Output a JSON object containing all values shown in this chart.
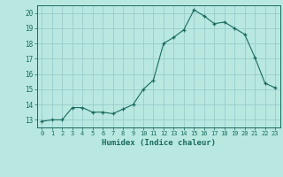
{
  "x": [
    0,
    1,
    2,
    3,
    4,
    5,
    6,
    7,
    8,
    9,
    10,
    11,
    12,
    13,
    14,
    15,
    16,
    17,
    18,
    19,
    20,
    21,
    22,
    23
  ],
  "y": [
    12.9,
    13.0,
    13.0,
    13.8,
    13.8,
    13.5,
    13.5,
    13.4,
    13.7,
    14.0,
    15.0,
    15.6,
    18.0,
    18.4,
    18.9,
    20.2,
    19.8,
    19.3,
    19.4,
    19.0,
    18.6,
    17.1,
    15.4,
    15.1
  ],
  "xlim": [
    -0.5,
    23.5
  ],
  "ylim": [
    12.5,
    20.5
  ],
  "yticks": [
    13,
    14,
    15,
    16,
    17,
    18,
    19,
    20
  ],
  "xticks": [
    0,
    1,
    2,
    3,
    4,
    5,
    6,
    7,
    8,
    9,
    10,
    11,
    12,
    13,
    14,
    15,
    16,
    17,
    18,
    19,
    20,
    21,
    22,
    23
  ],
  "xlabel": "Humidex (Indice chaleur)",
  "line_color": "#1a6b5e",
  "marker": "+",
  "bg_color": "#b8e8e0",
  "grid_color": "#99cccc",
  "tick_color": "#1a6b5e",
  "xlabel_color": "#1a6b5e",
  "fig_width": 3.2,
  "fig_height": 2.0,
  "dpi": 100
}
